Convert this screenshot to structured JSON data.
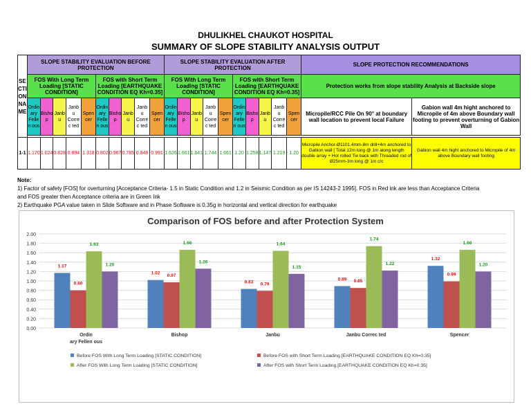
{
  "header": {
    "title1": "DHULIKHEL CHAUKOT HOSPITAL",
    "title2": "SUMMARY OF SLOPE STABILITY ANALYSIS OUTPUT"
  },
  "table": {
    "section_label": "SE CTI ON NA ME",
    "before_label": "SLOPE STABILITY EVALUATION BEFORE PROTECTION",
    "after_label": "SLOPE STABILITY EVALUATION AFTER PROTECTION",
    "rec_label": "SLOPE PROTECTION RECOMMENDATIONS",
    "long_term": "FOS With Long Term Loading [STATIC CONDITION]",
    "short_term": "FOS with Short Term Loading [EARTHQUAKE CONDITION EQ Kh=0.35]",
    "rec_sub": "Protection works from slope stability Analysis at Backside slope",
    "rec_col1": "Micropile/RCC Pile On 90° at boundary wall location to prevent local Failure",
    "rec_col2": "Gabion wall 4m hight anchored to Micropile of 4m above Boundary wall footing to prevent overturning of Gabion Wall",
    "methods": [
      "Ordin ary Felle n ous",
      "Bisho p",
      "Janb u",
      "Janb u Corre c ted",
      "Spen cer"
    ],
    "row": {
      "name": "1-1",
      "before_long": [
        "1.170",
        "1.024",
        "0.828",
        "0.894",
        "1.318"
      ],
      "before_short": [
        "0.802",
        "0.967",
        "0.785",
        "0.848",
        "0.991"
      ],
      "after_long": [
        "1.626",
        "1.661",
        "1.641",
        "1.744",
        "1.661"
      ],
      "after_short": [
        "1.20",
        "1.258",
        "1.147",
        "1.219",
        "1.20"
      ],
      "rec1": "Micropile Anchor-Ø1101.4mm-8m drill+4m anchored to Gabion wall [ Total 12m long @ 1m along length double array + Hot rolled Tie back with Threaded rod of Ø25mm-3m long @ 1m c/c",
      "rec2": "Gabion wall 4m hight anchored to Micropile of 4m above Boundary wall footing"
    }
  },
  "notes": {
    "heading": "Note:",
    "n1a": "1)    Factor of safety [FOS] for overturning [Acceptance Criteria- 1.5 in Static Condition and 1.2 in Seismic Condition as per IS 14243-2 1995]. FOS in Red ink are less than Acceptance Criteria",
    "n1b": "and FOS greater then Acceptance criteria are in Green Ink",
    "n2": "2)    Earthquake PGA value taken in Slide Software and in Phase Software is 0.35g in horizontal and vertical direction for earthquake"
  },
  "chart_data": {
    "type": "bar",
    "title": "Comparison of FOS before and after Protection System",
    "categories": [
      "Ordin ary Fellen ous",
      "Bishop",
      "Janbu",
      "Janbu Correc ted",
      "Spencer"
    ],
    "ylim": [
      0,
      2.0
    ],
    "yticks": [
      "0.00",
      "0.20",
      "0.40",
      "0.60",
      "0.80",
      "1.00",
      "1.20",
      "1.40",
      "1.60",
      "1.80",
      "2.00"
    ],
    "series": [
      {
        "name": "Before FOS With Long Term Loading [STATIC CONDITION]",
        "color": "#4f81bd",
        "values": [
          1.17,
          1.02,
          0.83,
          0.89,
          1.32
        ],
        "labels": [
          "1.17",
          "1.02",
          "0.83",
          "0.89",
          "1.32"
        ],
        "label_color": "#e01010"
      },
      {
        "name": "Before FOS with Short Term Loading [EARTHQUAKE CONDITION EQ Kh=0.35]",
        "color": "#c0504d",
        "values": [
          0.8,
          0.97,
          0.79,
          0.85,
          0.99
        ],
        "labels": [
          "0.80",
          "0.97",
          "0.79",
          "0.85",
          "0.99"
        ],
        "label_color": "#e01010"
      },
      {
        "name": "After FOS With Long Term Loading [STATIC CONDITION]",
        "color": "#9bbb59",
        "values": [
          1.63,
          1.66,
          1.64,
          1.74,
          1.66
        ],
        "labels": [
          "1.63",
          "1.66",
          "1.64",
          "1.74",
          "1.66"
        ],
        "label_color": "#1a9a1a"
      },
      {
        "name": "After FOS with Short Term Loading [EARTHQUAKE CONDITION EQ Kh=0.35]",
        "color": "#8064a2",
        "values": [
          1.2,
          1.26,
          1.15,
          1.22,
          1.2
        ],
        "labels": [
          "1.20",
          "1.26",
          "1.15",
          "1.22",
          "1.20"
        ],
        "label_color": "#1a9a1a"
      }
    ],
    "grid": true,
    "legend": "bottom"
  }
}
